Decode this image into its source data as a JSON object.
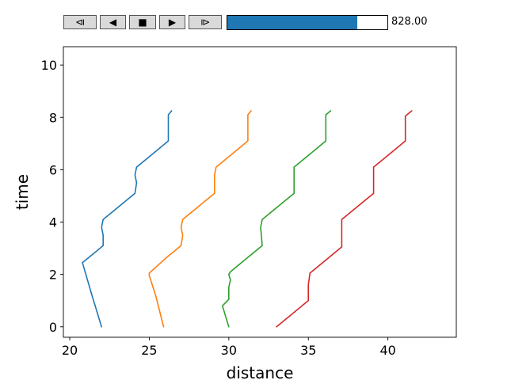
{
  "controls": {
    "buttons": [
      {
        "name": "step-back-button",
        "glyph": "⧏"
      },
      {
        "name": "play-reverse-button",
        "glyph": "◀"
      },
      {
        "name": "stop-button",
        "glyph": "■"
      },
      {
        "name": "play-button",
        "glyph": "▶"
      },
      {
        "name": "step-forward-button",
        "glyph": "⧐"
      }
    ],
    "slider": {
      "fraction": 0.81
    },
    "slider_value": "828.00",
    "colors": {
      "button_bg": "#d9d9d9",
      "slider_fill": "#1f77b4"
    }
  },
  "chart_data": {
    "type": "line",
    "xlabel": "distance",
    "ylabel": "time",
    "xlim": [
      19.6,
      44.3
    ],
    "ylim": [
      -0.4,
      10.7
    ],
    "xticks": [
      20,
      25,
      30,
      35,
      40
    ],
    "yticks": [
      0,
      2,
      4,
      6,
      8,
      10
    ],
    "grid": false,
    "series": [
      {
        "color": "#1f77b4",
        "x": [
          22.0,
          21.4,
          20.8,
          21.5,
          22.1,
          22.1,
          22.0,
          22.1,
          23.1,
          24.1,
          24.2,
          24.1,
          24.2,
          25.2,
          26.2,
          26.2,
          26.2,
          26.4
        ],
        "y": [
          0.0,
          1.2,
          2.45,
          2.8,
          3.1,
          3.5,
          3.8,
          4.1,
          4.6,
          5.1,
          5.5,
          5.8,
          6.1,
          6.6,
          7.1,
          7.5,
          8.1,
          8.25
        ]
      },
      {
        "color": "#ff7f0e",
        "x": [
          25.9,
          25.4,
          25.0,
          25.0,
          26.0,
          27.0,
          27.1,
          27.0,
          27.1,
          28.1,
          29.1,
          29.1,
          29.1,
          29.2,
          30.2,
          31.2,
          31.2,
          31.2,
          31.4
        ],
        "y": [
          0.0,
          1.2,
          1.95,
          2.05,
          2.6,
          3.1,
          3.5,
          3.8,
          4.1,
          4.6,
          5.1,
          5.5,
          5.8,
          6.1,
          6.6,
          7.1,
          7.5,
          8.1,
          8.25
        ]
      },
      {
        "color": "#2ca02c",
        "x": [
          30.0,
          29.6,
          30.0,
          30.0,
          30.1,
          30.0,
          30.1,
          31.1,
          32.1,
          32.0,
          32.1,
          33.1,
          34.1,
          34.1,
          34.1,
          35.1,
          36.1,
          36.1,
          36.1,
          36.4
        ],
        "y": [
          0.0,
          0.8,
          1.05,
          1.5,
          1.8,
          2.0,
          2.1,
          2.6,
          3.1,
          3.8,
          4.1,
          4.6,
          5.1,
          5.8,
          6.1,
          6.6,
          7.1,
          7.5,
          8.1,
          8.25
        ]
      },
      {
        "color": "#d62728",
        "x": [
          33.0,
          34.0,
          35.0,
          35.0,
          35.1,
          36.1,
          37.1,
          37.1,
          37.1,
          38.1,
          39.1,
          39.1,
          39.1,
          40.1,
          41.1,
          41.1,
          41.1,
          41.5
        ],
        "y": [
          0.0,
          0.5,
          1.0,
          1.6,
          2.05,
          2.55,
          3.05,
          3.6,
          4.1,
          4.6,
          5.1,
          5.6,
          6.1,
          6.6,
          7.1,
          7.6,
          8.05,
          8.25
        ]
      }
    ]
  }
}
